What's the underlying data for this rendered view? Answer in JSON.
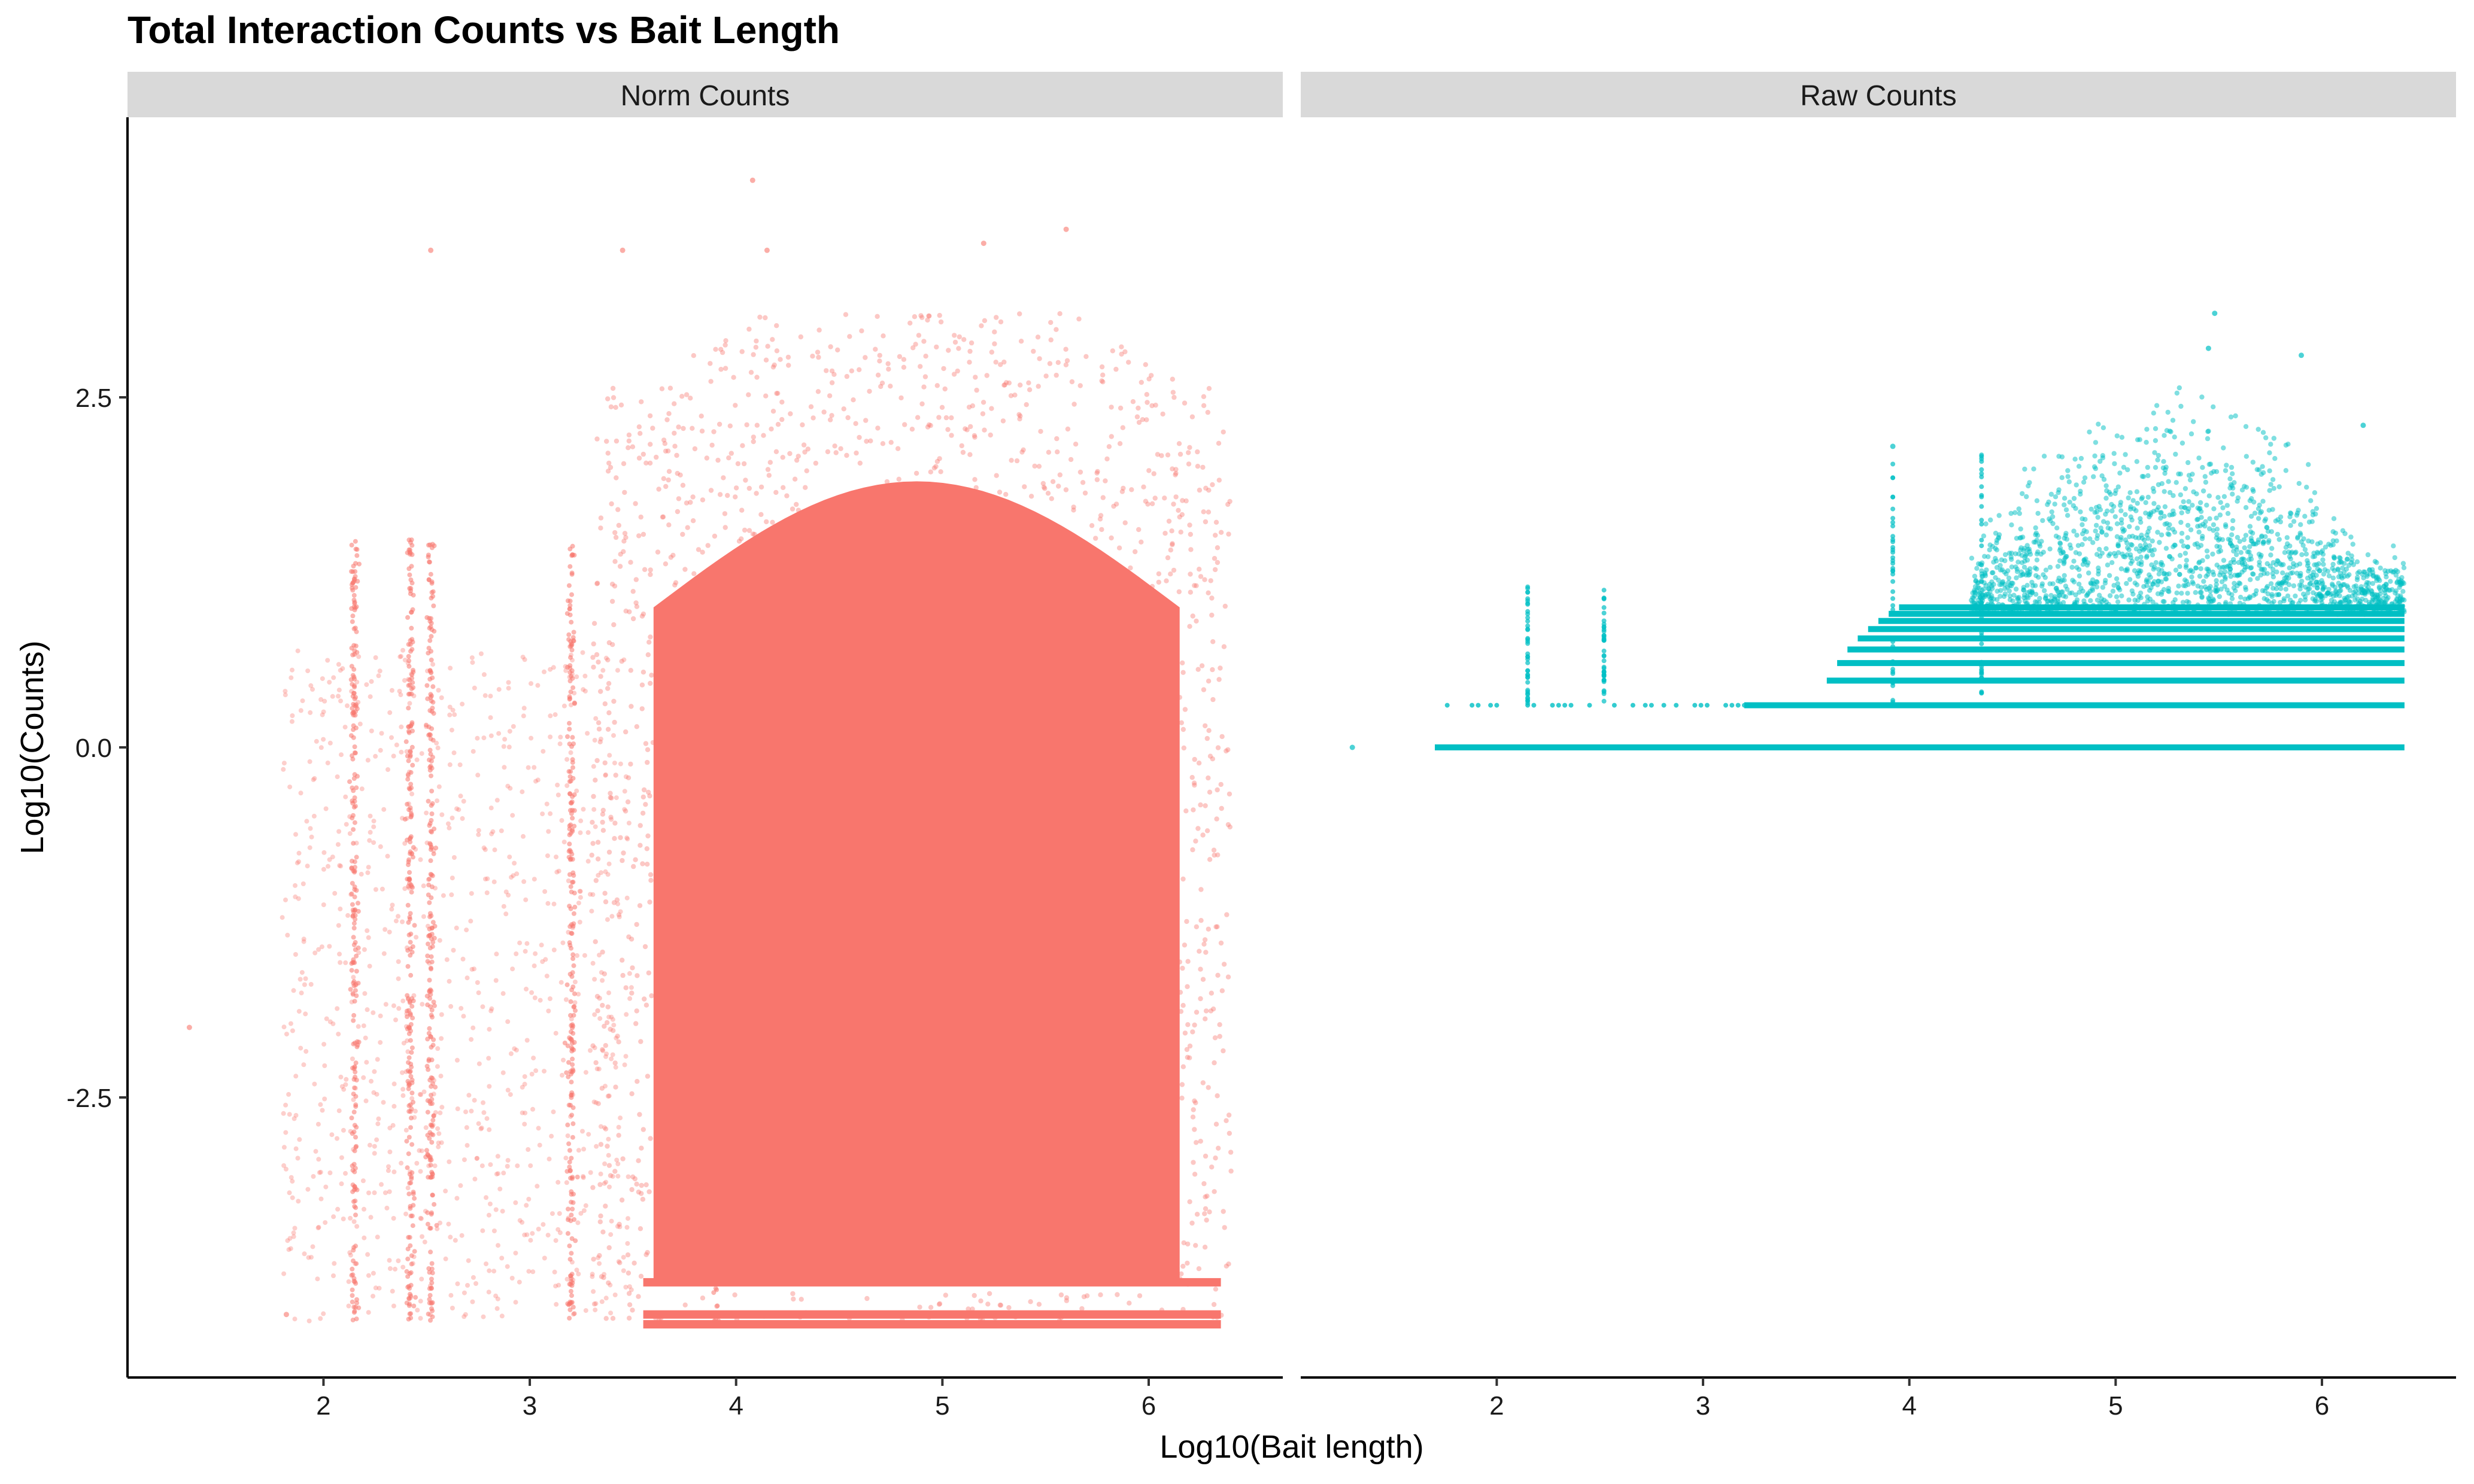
{
  "chart_data": {
    "type": "scatter",
    "title": "Total Interaction Counts vs Bait Length",
    "xlabel": "Log10(Bait length)",
    "ylabel": "Log10(Counts)",
    "xlim": [
      1.05,
      6.65
    ],
    "ylim": [
      -4.5,
      4.5
    ],
    "x_ticks": [
      2,
      3,
      4,
      5,
      6
    ],
    "y_ticks": [
      -2.5,
      0,
      2.5
    ],
    "y_tick_labels": [
      "-2.5",
      "0.0",
      "2.5"
    ],
    "grid": false,
    "legend": "none",
    "panels": [
      {
        "name": "Norm Counts",
        "color": "#F8766D",
        "bulk_region": {
          "x": [
            3.6,
            6.15
          ],
          "y": [
            -4.0,
            1.0
          ]
        },
        "band_y_values": [
          -3.82,
          -4.05,
          -4.12
        ],
        "stripe_x_values": [
          2.15,
          2.42,
          2.52,
          3.2,
          3.9
        ],
        "outlier_points": [
          {
            "x": 1.35,
            "y": -2.0
          },
          {
            "x": 1.82,
            "y": -4.05
          },
          {
            "x": 2.52,
            "y": 3.55
          },
          {
            "x": 3.45,
            "y": 3.55
          },
          {
            "x": 4.08,
            "y": 4.05
          },
          {
            "x": 4.15,
            "y": 3.55
          },
          {
            "x": 5.6,
            "y": 3.7
          },
          {
            "x": 5.2,
            "y": 3.6
          }
        ]
      },
      {
        "name": "Raw Counts",
        "color": "#00BFC4",
        "band_y_values": [
          0,
          0.301,
          0.477,
          0.602,
          0.699,
          0.778,
          0.845,
          0.903,
          0.954,
          1.0
        ],
        "stripe_x_values": [
          2.15,
          2.52,
          3.92,
          4.35
        ],
        "outlier_points": [
          {
            "x": 1.3,
            "y": 0
          },
          {
            "x": 5.48,
            "y": 3.1
          },
          {
            "x": 5.45,
            "y": 2.85
          },
          {
            "x": 5.9,
            "y": 2.8
          },
          {
            "x": 3.92,
            "y": 2.15
          },
          {
            "x": 6.2,
            "y": 2.3
          }
        ]
      }
    ]
  }
}
